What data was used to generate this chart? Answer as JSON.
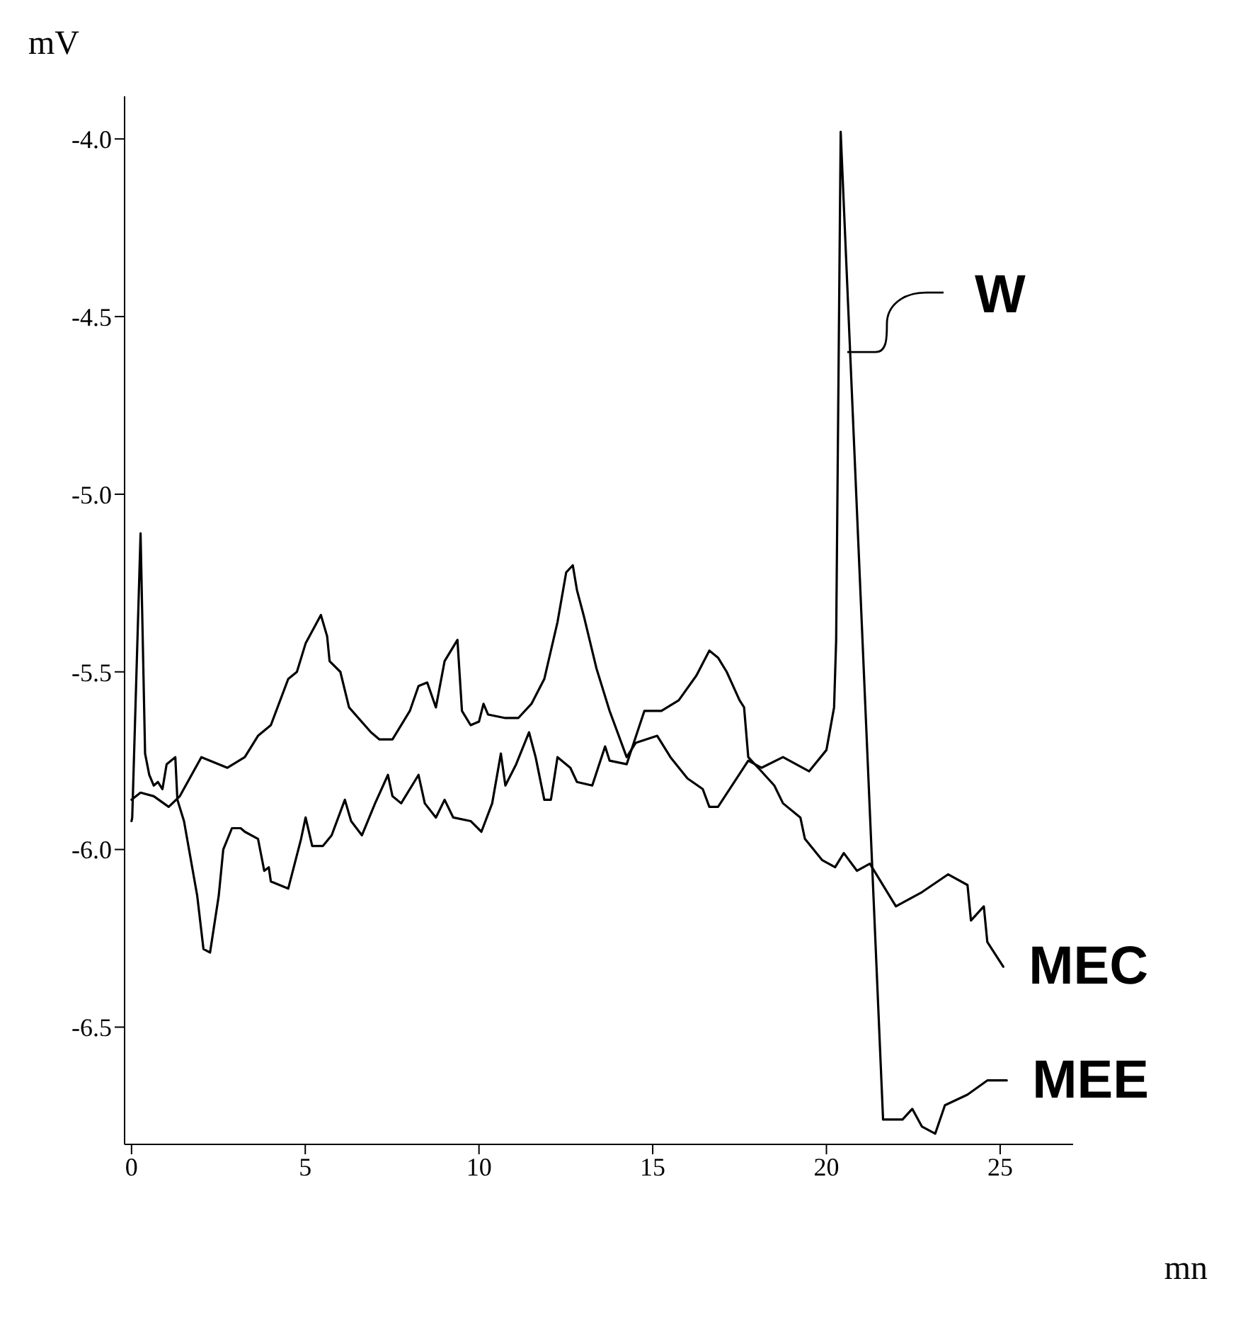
{
  "chart_data": {
    "type": "line",
    "xlabel": "mn",
    "ylabel": "mV",
    "xlim": [
      -0.2,
      27.1
    ],
    "xticks": [
      0,
      5,
      10,
      15,
      20,
      25
    ],
    "ylim": [
      -6.83,
      -3.88
    ],
    "yticks": [
      {
        "value": -4,
        "label": "-4.0"
      },
      {
        "value": -4.5,
        "label": "-4.5"
      },
      {
        "value": -5,
        "label": "-5.0"
      },
      {
        "value": -5.5,
        "label": "-5.5"
      },
      {
        "value": -6,
        "label": "-6.0"
      },
      {
        "value": -6.5,
        "label": "-6.5"
      }
    ],
    "grid": false,
    "legend": false,
    "marker": "none",
    "line_style": "solid",
    "annotations": [
      {
        "text": "W",
        "x": 20.6,
        "y": -4.6
      }
    ],
    "series": [
      {
        "name": "MEC",
        "color": "#000000",
        "x": [
          0,
          0.02,
          0.26,
          0.39,
          0.51,
          0.64,
          0.76,
          0.89,
          1.01,
          1.26,
          1.32,
          1.51,
          1.89,
          2.07,
          2.26,
          2.51,
          2.64,
          2.89,
          3.14,
          3.26,
          3.64,
          3.82,
          3.95,
          4.01,
          4.51,
          4.88,
          5.01,
          5.2,
          5.51,
          5.76,
          6.14,
          6.32,
          6.63,
          7.01,
          7.38,
          7.51,
          7.76,
          8.26,
          8.44,
          8.76,
          9.01,
          9.26,
          9.76,
          10.07,
          10.38,
          10.63,
          10.76,
          11.07,
          11.44,
          11.63,
          11.88,
          12.07,
          12.26,
          12.63,
          12.82,
          13.26,
          13.63,
          13.76,
          14.25,
          14.76,
          15.25,
          15.75,
          16.26,
          16.63,
          16.88,
          17.13,
          17.5,
          17.63,
          17.75,
          18.13,
          18.5,
          18.75,
          19.25,
          19.38,
          19.88,
          20.25,
          20.5,
          20.88,
          21.25,
          22,
          22.75,
          23.5,
          24.06,
          24.16,
          24.53,
          24.63,
          25.09
        ],
        "values": [
          -5.92,
          -5.91,
          -5.11,
          -5.73,
          -5.79,
          -5.82,
          -5.81,
          -5.83,
          -5.76,
          -5.74,
          -5.86,
          -5.92,
          -6.13,
          -6.28,
          -6.29,
          -6.13,
          -6,
          -5.94,
          -5.94,
          -5.95,
          -5.97,
          -6.06,
          -6.05,
          -6.09,
          -6.11,
          -5.97,
          -5.91,
          -5.99,
          -5.99,
          -5.96,
          -5.86,
          -5.92,
          -5.96,
          -5.87,
          -5.79,
          -5.85,
          -5.87,
          -5.79,
          -5.87,
          -5.91,
          -5.86,
          -5.91,
          -5.92,
          -5.95,
          -5.87,
          -5.73,
          -5.82,
          -5.76,
          -5.67,
          -5.74,
          -5.86,
          -5.86,
          -5.74,
          -5.77,
          -5.81,
          -5.82,
          -5.71,
          -5.75,
          -5.76,
          -5.61,
          -5.61,
          -5.58,
          -5.51,
          -5.44,
          -5.46,
          -5.5,
          -5.58,
          -5.6,
          -5.74,
          -5.78,
          -5.82,
          -5.87,
          -5.91,
          -5.97,
          -6.03,
          -6.05,
          -6.01,
          -6.06,
          -6.04,
          -6.16,
          -6.12,
          -6.07,
          -6.1,
          -6.2,
          -6.16,
          -6.26,
          -6.33
        ]
      },
      {
        "name": "MEE",
        "color": "#000000",
        "x": [
          0,
          0.26,
          0.64,
          1.07,
          1.39,
          2.01,
          2.51,
          2.76,
          3.26,
          3.64,
          4.01,
          4.51,
          4.76,
          5.01,
          5.45,
          5.63,
          5.7,
          6.01,
          6.26,
          6.89,
          7.13,
          7.51,
          8.01,
          8.26,
          8.51,
          8.76,
          9.01,
          9.38,
          9.51,
          9.76,
          10,
          10.13,
          10.26,
          10.76,
          11.13,
          11.51,
          11.88,
          12.26,
          12.51,
          12.7,
          12.82,
          13.01,
          13.38,
          13.76,
          14.25,
          14.51,
          15.13,
          15.51,
          16,
          16.44,
          16.63,
          16.88,
          17.75,
          18.13,
          18.75,
          19.5,
          20,
          20.22,
          20.28,
          20.41,
          21.63,
          22.19,
          22.47,
          22.75,
          23.13,
          23.41,
          24.06,
          24.63,
          25.19
        ],
        "values": [
          -5.86,
          -5.84,
          -5.85,
          -5.88,
          -5.85,
          -5.74,
          -5.76,
          -5.77,
          -5.74,
          -5.68,
          -5.65,
          -5.52,
          -5.5,
          -5.42,
          -5.34,
          -5.4,
          -5.47,
          -5.5,
          -5.6,
          -5.67,
          -5.69,
          -5.69,
          -5.61,
          -5.54,
          -5.53,
          -5.6,
          -5.47,
          -5.41,
          -5.61,
          -5.65,
          -5.64,
          -5.59,
          -5.62,
          -5.63,
          -5.63,
          -5.59,
          -5.52,
          -5.36,
          -5.22,
          -5.2,
          -5.27,
          -5.34,
          -5.49,
          -5.61,
          -5.74,
          -5.7,
          -5.68,
          -5.74,
          -5.8,
          -5.83,
          -5.88,
          -5.88,
          -5.75,
          -5.77,
          -5.74,
          -5.78,
          -5.72,
          -5.6,
          -5.41,
          -3.98,
          -6.76,
          -6.76,
          -6.73,
          -6.78,
          -6.8,
          -6.72,
          -6.69,
          -6.65,
          -6.65
        ]
      }
    ]
  }
}
